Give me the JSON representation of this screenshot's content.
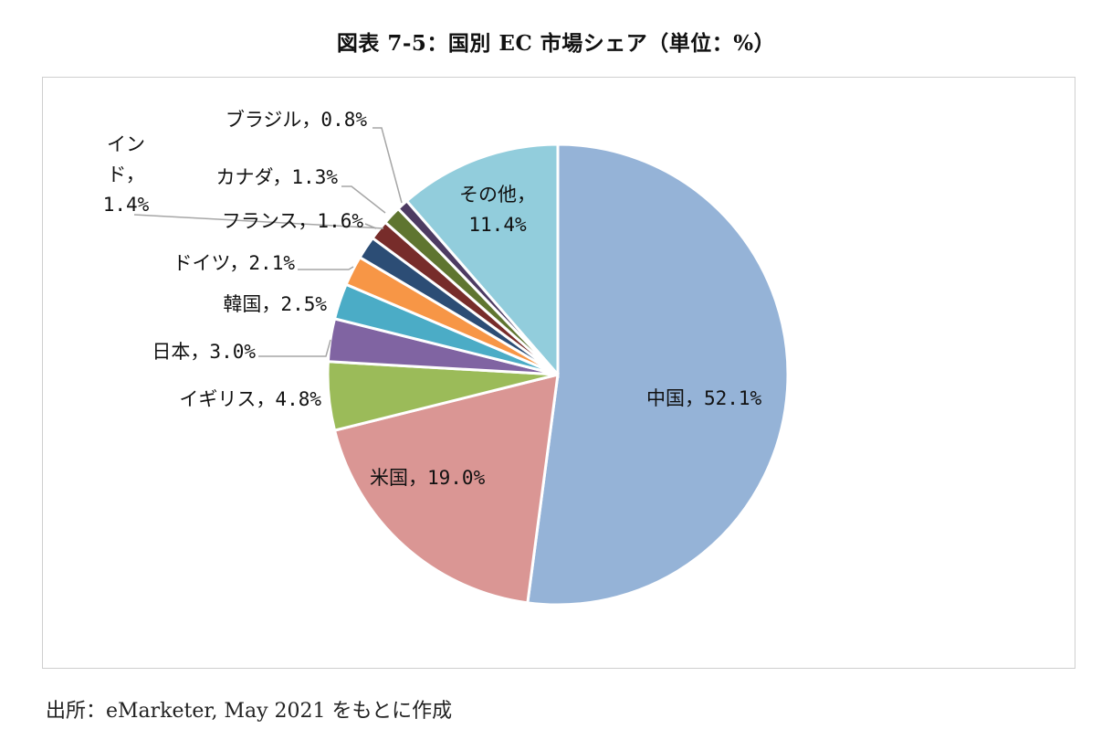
{
  "title": "図表 7-5：国別 EC 市場シェア（単位：%）",
  "source": "出所：eMarketer, May 2021 をもとに作成",
  "chart_data": {
    "type": "pie",
    "start": "12 o'clock, clockwise",
    "slices": [
      {
        "label": "中国，52.1%",
        "value": 52.1,
        "color": "#95b3d7"
      },
      {
        "label": "米国，19.0%",
        "value": 19.0,
        "color": "#da9694"
      },
      {
        "label": "イギリス，4.8%",
        "value": 4.8,
        "color": "#9bbb59"
      },
      {
        "label": "日本，3.0%",
        "value": 3.0,
        "color": "#8064a2"
      },
      {
        "label": "韓国，2.5%",
        "value": 2.5,
        "color": "#4bacc6"
      },
      {
        "label": "ドイツ，2.1%",
        "value": 2.1,
        "color": "#f79646"
      },
      {
        "label": "フランス，1.6%",
        "value": 1.6,
        "color": "#2c4d75"
      },
      {
        "label": "インド，1.4%",
        "lines": [
          "イン",
          "ド，",
          "1.4%"
        ],
        "value": 1.4,
        "color": "#772c2a"
      },
      {
        "label": "カナダ，1.3%",
        "value": 1.3,
        "color": "#5f7530"
      },
      {
        "label": "ブラジル，0.8%",
        "value": 0.8,
        "color": "#4d3b62"
      },
      {
        "label": "その他，11.4%",
        "lines": [
          "その他，",
          "11.4%"
        ],
        "value": 11.4,
        "color": "#92cddc"
      }
    ]
  }
}
